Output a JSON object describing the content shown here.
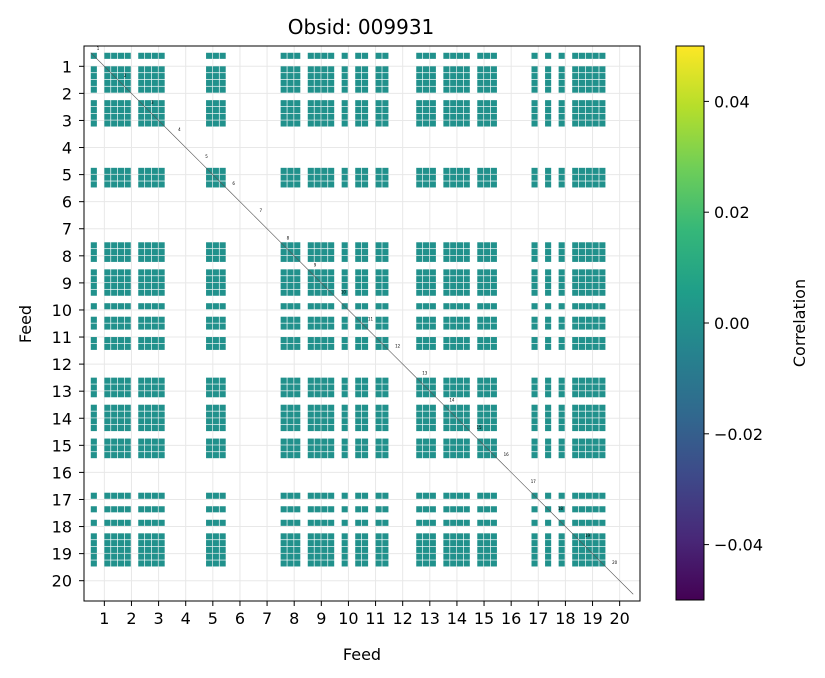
{
  "chart_data": {
    "type": "heatmap",
    "title": "Obsid: 009931",
    "xlabel": "Feed",
    "ylabel": "Feed",
    "x_ticks": [
      "1",
      "2",
      "3",
      "4",
      "5",
      "6",
      "7",
      "8",
      "9",
      "10",
      "11",
      "12",
      "13",
      "14",
      "15",
      "16",
      "17",
      "18",
      "19",
      "20"
    ],
    "y_ticks": [
      "1",
      "2",
      "3",
      "4",
      "5",
      "6",
      "7",
      "8",
      "9",
      "10",
      "11",
      "12",
      "13",
      "14",
      "15",
      "16",
      "17",
      "18",
      "19",
      "20"
    ],
    "grid": true,
    "feeds": 20,
    "subpixels_per_feed": 4,
    "cell_value": 0.0,
    "cell_color": "#21918c",
    "inactive_feeds": [
      4,
      6,
      7,
      12,
      16,
      20
    ],
    "partial_feeds": [
      10,
      17,
      18
    ],
    "diagonal_labels": [
      "1",
      "2",
      "3",
      "4",
      "5",
      "6",
      "7",
      "8",
      "9",
      "10",
      "11",
      "12",
      "13",
      "14",
      "15",
      "16",
      "17",
      "18",
      "19",
      "20"
    ],
    "colorbar": {
      "label": "Correlation",
      "range": [
        -0.05,
        0.05
      ],
      "ticks": [
        "0.04",
        "0.02",
        "0.00",
        "−0.02",
        "−0.04"
      ],
      "tick_values": [
        0.04,
        0.02,
        0.0,
        -0.02,
        -0.04
      ],
      "colors": [
        "#440154",
        "#482878",
        "#3e4989",
        "#31688e",
        "#26828e",
        "#1f9e89",
        "#35b779",
        "#6ece58",
        "#b5de2b",
        "#fde725"
      ]
    }
  }
}
